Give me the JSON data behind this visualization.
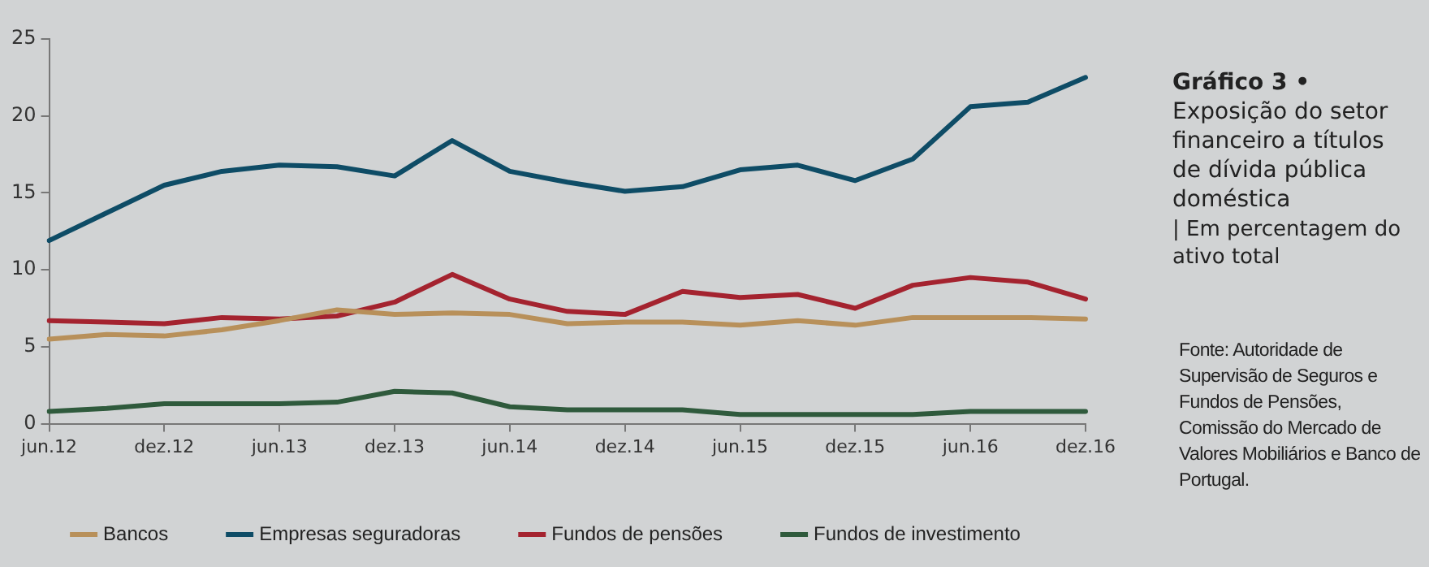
{
  "chart_data": {
    "type": "line",
    "title": "Gráfico 3 •",
    "subtitle": "Exposição do setor financeiro a títulos de dívida pública doméstica",
    "ylabel": "| Em percentagem do ativo total",
    "annotations": [
      "Fonte: Autoridade de Supervisão de Seguros e Fundos de Pensões, Comissão do Mercado de Valores Mobiliários e Banco de Portugal."
    ],
    "categories": [
      "jun.12",
      null,
      "dez.12",
      null,
      "jun.13",
      null,
      "dez.13",
      null,
      "jun.14",
      null,
      "dez.14",
      null,
      "jun.15",
      null,
      "dez.15",
      null,
      "jun.16",
      null,
      "dez.16"
    ],
    "series": [
      {
        "name": "Bancos",
        "color": "#b8905a",
        "values": [
          5.5,
          5.8,
          5.7,
          6.1,
          6.7,
          7.4,
          7.1,
          7.2,
          7.1,
          6.5,
          6.6,
          6.6,
          6.4,
          6.7,
          6.4,
          6.9,
          6.9,
          6.9,
          6.8
        ]
      },
      {
        "name": "Empresas seguradoras",
        "color": "#0e4c66",
        "values": [
          11.9,
          13.7,
          15.5,
          16.4,
          16.8,
          16.7,
          16.1,
          18.4,
          16.4,
          15.7,
          15.1,
          15.4,
          16.5,
          16.8,
          15.8,
          17.2,
          20.6,
          20.9,
          22.5
        ]
      },
      {
        "name": "Fundos de pensões",
        "color": "#a4232f",
        "values": [
          6.7,
          6.6,
          6.5,
          6.9,
          6.8,
          7.0,
          7.9,
          9.7,
          8.1,
          7.3,
          7.1,
          8.6,
          8.2,
          8.4,
          7.5,
          9.0,
          9.5,
          9.2,
          8.1
        ]
      },
      {
        "name": "Fundos de investimento",
        "color": "#2f5a3c",
        "values": [
          0.8,
          1.0,
          1.3,
          1.3,
          1.3,
          1.4,
          2.1,
          2.0,
          1.1,
          0.9,
          0.9,
          0.9,
          0.6,
          0.6,
          0.6,
          0.6,
          0.8,
          0.8,
          0.8
        ]
      }
    ],
    "ylim": [
      0,
      25
    ],
    "yticks": [
      0,
      5,
      10,
      15,
      20,
      25
    ],
    "grid": false,
    "legend": "bottom",
    "marker": "none",
    "line_style": "solid"
  }
}
